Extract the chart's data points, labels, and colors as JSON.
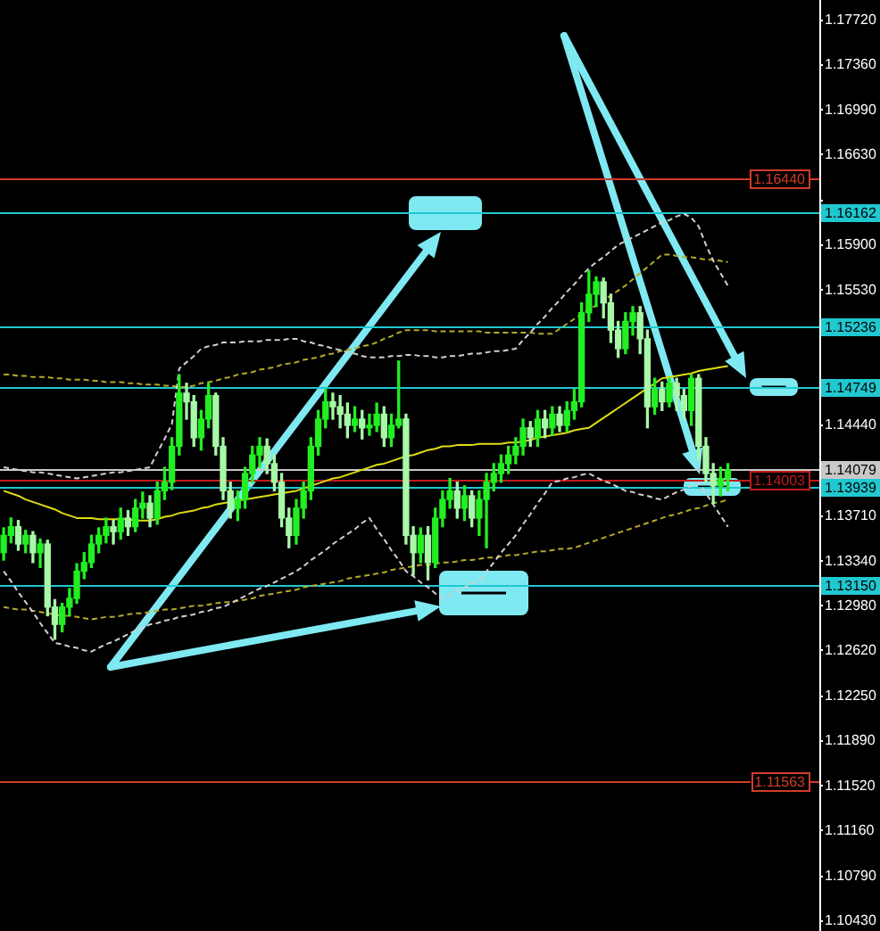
{
  "chart_data": {
    "type": "candlestick",
    "categories": [
      null,
      null,
      null,
      null,
      null,
      null,
      null,
      null,
      null,
      null,
      null,
      null,
      null,
      null,
      null,
      null,
      null,
      null,
      null,
      null,
      null,
      null,
      null,
      null,
      null,
      null,
      null,
      null,
      null,
      null,
      null,
      null,
      null,
      null,
      null,
      null,
      null,
      null,
      null,
      null,
      null,
      null,
      null,
      null,
      null,
      null,
      null,
      null,
      null,
      null,
      null,
      null,
      null,
      null,
      null,
      null,
      null,
      null,
      null,
      null,
      null,
      null,
      null,
      null,
      null,
      null,
      null,
      null,
      null,
      null,
      null,
      null,
      null,
      null,
      null,
      null,
      null,
      null,
      null,
      null,
      null,
      null,
      null,
      null,
      null,
      null,
      null,
      null,
      null,
      null,
      null,
      null,
      null,
      null,
      null,
      null,
      null,
      null,
      null,
      null,
      null,
      null,
      null,
      null,
      null,
      null,
      null,
      null,
      null,
      null,
      null,
      null
    ],
    "ohlc": [
      [
        1.1341,
        1.1361,
        1.1335,
        1.1355
      ],
      [
        1.1355,
        1.1369,
        1.1349,
        1.1362
      ],
      [
        1.1362,
        1.1367,
        1.1343,
        1.1348
      ],
      [
        1.1348,
        1.1359,
        1.1341,
        1.1355
      ],
      [
        1.1355,
        1.1358,
        1.1333,
        1.1341
      ],
      [
        1.1341,
        1.1352,
        1.1329,
        1.1348
      ],
      [
        1.1348,
        1.1351,
        1.129,
        1.1297
      ],
      [
        1.1297,
        1.1303,
        1.1271,
        1.1283
      ],
      [
        1.1283,
        1.13,
        1.1277,
        1.1297
      ],
      [
        1.1297,
        1.1312,
        1.129,
        1.1304
      ],
      [
        1.1304,
        1.1332,
        1.13,
        1.1326
      ],
      [
        1.1326,
        1.1341,
        1.132,
        1.1333
      ],
      [
        1.1333,
        1.1355,
        1.1329,
        1.1348
      ],
      [
        1.1348,
        1.1361,
        1.1341,
        1.1355
      ],
      [
        1.1355,
        1.1369,
        1.1349,
        1.1362
      ],
      [
        1.1362,
        1.1367,
        1.1348,
        1.1358
      ],
      [
        1.1358,
        1.1377,
        1.1352,
        1.1369
      ],
      [
        1.1369,
        1.1375,
        1.1355,
        1.1362
      ],
      [
        1.1362,
        1.1384,
        1.1358,
        1.1377
      ],
      [
        1.1377,
        1.139,
        1.1369,
        1.1381
      ],
      [
        1.1381,
        1.1387,
        1.1362,
        1.1369
      ],
      [
        1.1369,
        1.1398,
        1.1364,
        1.1391
      ],
      [
        1.1391,
        1.141,
        1.1384,
        1.1398
      ],
      [
        1.1398,
        1.1434,
        1.1392,
        1.1427
      ],
      [
        1.1427,
        1.1485,
        1.142,
        1.147
      ],
      [
        1.147,
        1.1478,
        1.1449,
        1.1463
      ],
      [
        1.1463,
        1.1468,
        1.1427,
        1.1434
      ],
      [
        1.1434,
        1.1456,
        1.1424,
        1.1449
      ],
      [
        1.1449,
        1.1478,
        1.1442,
        1.1468
      ],
      [
        1.1468,
        1.147,
        1.142,
        1.1427
      ],
      [
        1.1427,
        1.1434,
        1.1384,
        1.1391
      ],
      [
        1.1391,
        1.1398,
        1.1369,
        1.1377
      ],
      [
        1.1377,
        1.1391,
        1.1367,
        1.1384
      ],
      [
        1.1384,
        1.141,
        1.1377,
        1.1405
      ],
      [
        1.1405,
        1.1427,
        1.1398,
        1.142
      ],
      [
        1.142,
        1.1434,
        1.141,
        1.1427
      ],
      [
        1.1427,
        1.1433,
        1.1405,
        1.1413
      ],
      [
        1.1413,
        1.142,
        1.1391,
        1.1398
      ],
      [
        1.1398,
        1.1405,
        1.1362,
        1.1369
      ],
      [
        1.1369,
        1.1377,
        1.1345,
        1.1355
      ],
      [
        1.1355,
        1.1384,
        1.1348,
        1.1377
      ],
      [
        1.1377,
        1.1398,
        1.1369,
        1.1391
      ],
      [
        1.1391,
        1.1434,
        1.1384,
        1.1427
      ],
      [
        1.1427,
        1.1456,
        1.142,
        1.1449
      ],
      [
        1.1449,
        1.1473,
        1.1442,
        1.1463
      ],
      [
        1.1463,
        1.147,
        1.1449,
        1.1459
      ],
      [
        1.1459,
        1.1468,
        1.1442,
        1.1453
      ],
      [
        1.1453,
        1.1462,
        1.1434,
        1.1444
      ],
      [
        1.1444,
        1.1459,
        1.1439,
        1.1449
      ],
      [
        1.1449,
        1.1456,
        1.1433,
        1.1442
      ],
      [
        1.1442,
        1.1453,
        1.1436,
        1.1444
      ],
      [
        1.1444,
        1.1462,
        1.1439,
        1.1453
      ],
      [
        1.1453,
        1.1459,
        1.1427,
        1.1434
      ],
      [
        1.1434,
        1.1453,
        1.1427,
        1.1444
      ],
      [
        1.1444,
        1.1496,
        1.1442,
        1.1449
      ],
      [
        1.1449,
        1.1453,
        1.1348,
        1.1355
      ],
      [
        1.1355,
        1.1362,
        1.1323,
        1.1341
      ],
      [
        1.1341,
        1.1361,
        1.1333,
        1.1355
      ],
      [
        1.1355,
        1.1362,
        1.1319,
        1.1333
      ],
      [
        1.1333,
        1.1377,
        1.1329,
        1.1369
      ],
      [
        1.1369,
        1.1391,
        1.1362,
        1.1384
      ],
      [
        1.1384,
        1.1401,
        1.1377,
        1.1391
      ],
      [
        1.1391,
        1.1398,
        1.1369,
        1.1377
      ],
      [
        1.1377,
        1.1395,
        1.1367,
        1.1387
      ],
      [
        1.1387,
        1.1391,
        1.1362,
        1.1369
      ],
      [
        1.1369,
        1.1391,
        1.1355,
        1.1384
      ],
      [
        1.1384,
        1.1405,
        1.1345,
        1.1398
      ],
      [
        1.1398,
        1.1413,
        1.1391,
        1.1405
      ],
      [
        1.1405,
        1.142,
        1.1398,
        1.1413
      ],
      [
        1.1413,
        1.1427,
        1.1405,
        1.142
      ],
      [
        1.142,
        1.1434,
        1.1413,
        1.1427
      ],
      [
        1.1427,
        1.1449,
        1.142,
        1.1442
      ],
      [
        1.1442,
        1.1447,
        1.1427,
        1.1434
      ],
      [
        1.1434,
        1.1456,
        1.1427,
        1.1449
      ],
      [
        1.1449,
        1.1456,
        1.1434,
        1.1442
      ],
      [
        1.1442,
        1.1459,
        1.1436,
        1.1453
      ],
      [
        1.1453,
        1.1459,
        1.1439,
        1.1444
      ],
      [
        1.1444,
        1.1463,
        1.1439,
        1.1456
      ],
      [
        1.1456,
        1.1473,
        1.1449,
        1.1463
      ],
      [
        1.1463,
        1.1543,
        1.1459,
        1.1535
      ],
      [
        1.1535,
        1.1569,
        1.1528,
        1.155
      ],
      [
        1.155,
        1.1564,
        1.154,
        1.156
      ],
      [
        1.156,
        1.1563,
        1.1531,
        1.1543
      ],
      [
        1.1543,
        1.155,
        1.1511,
        1.1521
      ],
      [
        1.1521,
        1.1528,
        1.1499,
        1.1506
      ],
      [
        1.1506,
        1.1535,
        1.1502,
        1.1528
      ],
      [
        1.1528,
        1.154,
        1.1517,
        1.1535
      ],
      [
        1.1535,
        1.154,
        1.1502,
        1.1514
      ],
      [
        1.1514,
        1.1521,
        1.1442,
        1.1459
      ],
      [
        1.1459,
        1.1482,
        1.1453,
        1.1473
      ],
      [
        1.1473,
        1.1479,
        1.1456,
        1.1463
      ],
      [
        1.1463,
        1.1482,
        1.1459,
        1.1478
      ],
      [
        1.1478,
        1.1482,
        1.1456,
        1.1468
      ],
      [
        1.1468,
        1.1473,
        1.1449,
        1.1456
      ],
      [
        1.1456,
        1.1485,
        1.1444,
        1.1482
      ],
      [
        1.1482,
        1.1485,
        1.1416,
        1.1427
      ],
      [
        1.1427,
        1.1434,
        1.1398,
        1.1405
      ],
      [
        1.1405,
        1.1413,
        1.1381,
        1.1395
      ],
      [
        1.1395,
        1.141,
        1.1387,
        1.1401
      ],
      [
        1.1401,
        1.1413,
        1.1391,
        1.1408
      ],
      null,
      null,
      null,
      null,
      null,
      null,
      null,
      null,
      null,
      null,
      null,
      null
    ],
    "colors": [
      "#22ee22",
      "#22ee22",
      "#a7f8a7",
      "#22ee22",
      "#a7f8a7",
      "#22ee22",
      "#a7f8a7",
      "#a7f8a7",
      "#22ee22",
      "#22ee22",
      "#22ee22",
      "#22ee22",
      "#22ee22",
      "#22ee22",
      "#22ee22",
      "#a7f8a7",
      "#22ee22",
      "#a7f8a7",
      "#22ee22",
      "#22ee22",
      "#a7f8a7",
      "#22ee22",
      "#22ee22",
      "#22ee22",
      "#22ee22",
      "#a7f8a7",
      "#a7f8a7",
      "#22ee22",
      "#22ee22",
      "#a7f8a7",
      "#a7f8a7",
      "#a7f8a7",
      "#22ee22",
      "#22ee22",
      "#22ee22",
      "#22ee22",
      "#a7f8a7",
      "#a7f8a7",
      "#a7f8a7",
      "#a7f8a7",
      "#22ee22",
      "#22ee22",
      "#22ee22",
      "#22ee22",
      "#22ee22",
      "#a7f8a7",
      "#a7f8a7",
      "#a7f8a7",
      "#22ee22",
      "#a7f8a7",
      "#22ee22",
      "#22ee22",
      "#a7f8a7",
      "#22ee22",
      "#22ee22",
      "#a7f8a7",
      "#a7f8a7",
      "#22ee22",
      "#a7f8a7",
      "#22ee22",
      "#22ee22",
      "#22ee22",
      "#a7f8a7",
      "#22ee22",
      "#a7f8a7",
      "#22ee22",
      "#22ee22",
      "#22ee22",
      "#22ee22",
      "#22ee22",
      "#22ee22",
      "#22ee22",
      "#a7f8a7",
      "#22ee22",
      "#a7f8a7",
      "#22ee22",
      "#a7f8a7",
      "#22ee22",
      "#22ee22",
      "#22ee22",
      "#22ee22",
      "#22ee22",
      "#a7f8a7",
      "#a7f8a7",
      "#a7f8a7",
      "#22ee22",
      "#22ee22",
      "#a7f8a7",
      "#a7f8a7",
      "#22ee22",
      "#a7f8a7",
      "#22ee22",
      "#a7f8a7",
      "#a7f8a7",
      "#22ee22",
      "#a7f8a7",
      "#a7f8a7",
      "#a7f8a7",
      "#22ee22",
      "#22ee22",
      null,
      null,
      null,
      null,
      null,
      null,
      null,
      null,
      null,
      null,
      null,
      null
    ],
    "series": [
      {
        "type": "line",
        "color": "#dede10",
        "line_style": "solid",
        "values": [
          1.1391,
          1.1389,
          1.1387,
          1.1384,
          1.1382,
          1.138,
          1.1378,
          1.1376,
          1.1373,
          1.1371,
          1.1369,
          1.1369,
          1.1369,
          1.1368,
          1.1368,
          1.1368,
          1.1368,
          1.1368,
          1.1367,
          1.1367,
          1.1367,
          1.1368,
          1.137,
          1.1371,
          1.1373,
          1.1374,
          1.1375,
          1.1377,
          1.1378,
          1.138,
          1.1381,
          1.1382,
          1.1383,
          1.1384,
          1.1385,
          1.1386,
          1.1387,
          1.1388,
          1.1389,
          1.139,
          1.1391,
          1.1393,
          1.1395,
          1.1397,
          1.1399,
          1.1401,
          1.1402,
          1.1404,
          1.1406,
          1.1408,
          1.141,
          1.1412,
          1.1413,
          1.1415,
          1.1417,
          1.1419,
          1.142,
          1.1422,
          1.1424,
          1.1425,
          1.1427,
          1.1427,
          1.1428,
          1.1428,
          1.1428,
          1.1429,
          1.1429,
          1.1429,
          1.1429,
          1.143,
          1.143,
          1.1431,
          1.1432,
          1.1434,
          1.1435,
          1.1436,
          1.1437,
          1.1438,
          1.144,
          1.1441,
          1.1442,
          1.1446,
          1.145,
          1.1454,
          1.1458,
          1.1462,
          1.1466,
          1.147,
          1.1474,
          1.1478,
          1.1482,
          1.1483,
          1.1484,
          1.1485,
          1.1486,
          1.1488,
          1.1489,
          1.149,
          1.1491,
          1.1492,
          null,
          null,
          null,
          null,
          null,
          null,
          null,
          null,
          null,
          null,
          null,
          null
        ]
      },
      {
        "type": "line",
        "color": "#d0d0d0",
        "line_style": "dashed",
        "values": [
          1.141,
          1.1409,
          1.1408,
          1.1407,
          1.1406,
          1.1406,
          1.1405,
          1.1404,
          1.1403,
          1.1402,
          1.1401,
          1.1402,
          1.1403,
          1.1404,
          1.1405,
          1.1406,
          1.1406,
          1.1407,
          1.1408,
          1.1409,
          1.141,
          1.1422,
          1.1433,
          1.1445,
          1.149,
          1.1495,
          1.15,
          1.1506,
          1.1508,
          1.1509,
          1.1511,
          1.1511,
          1.1511,
          1.1512,
          1.1512,
          1.1512,
          1.1513,
          1.1513,
          1.1513,
          1.1514,
          1.1514,
          1.1512,
          1.1511,
          1.1509,
          1.1508,
          1.1506,
          1.1505,
          1.1503,
          1.1502,
          1.15,
          1.1499,
          1.1499,
          1.1499,
          1.15,
          1.15,
          1.1501,
          1.1501,
          1.15,
          1.15,
          1.1499,
          1.1499,
          1.15,
          1.15,
          1.1501,
          1.1502,
          1.1502,
          1.1503,
          1.1504,
          1.1504,
          1.1505,
          1.1506,
          1.1513,
          1.1519,
          1.1526,
          1.1532,
          1.1539,
          1.1545,
          1.1552,
          1.1558,
          1.1565,
          1.1571,
          1.1576,
          1.158,
          1.1585,
          1.159,
          1.1593,
          1.1596,
          1.1599,
          1.1602,
          1.1605,
          1.1608,
          1.161,
          1.1613,
          1.1615,
          1.1612,
          1.1605,
          1.159,
          1.1577,
          1.1567,
          1.1557,
          null,
          null,
          null,
          null,
          null,
          null,
          null,
          null,
          null,
          null,
          null,
          null
        ]
      },
      {
        "type": "line",
        "color": "#d0d0d0",
        "line_style": "dashed",
        "values": [
          1.1326,
          1.1318,
          1.1309,
          1.1301,
          1.1293,
          1.1284,
          1.1276,
          1.1268,
          1.1267,
          1.1265,
          1.1264,
          1.1262,
          1.1261,
          1.1264,
          1.1267,
          1.1269,
          1.1272,
          1.1275,
          1.1278,
          1.128,
          1.1283,
          1.1284,
          1.1286,
          1.1287,
          1.1289,
          1.129,
          1.1291,
          1.1293,
          1.1294,
          1.1296,
          1.1297,
          1.13,
          1.1303,
          1.1306,
          1.1309,
          1.1312,
          1.1314,
          1.1317,
          1.132,
          1.1323,
          1.1326,
          1.133,
          1.1335,
          1.1339,
          1.1343,
          1.1348,
          1.1352,
          1.1356,
          1.136,
          1.1365,
          1.1369,
          1.136,
          1.1352,
          1.1343,
          1.1335,
          1.1326,
          1.1322,
          1.1317,
          1.1313,
          1.1308,
          1.1304,
          1.1307,
          1.131,
          1.1313,
          1.1316,
          1.1319,
          1.1326,
          1.1333,
          1.1341,
          1.1348,
          1.1355,
          1.1364,
          1.1372,
          1.1381,
          1.1389,
          1.1398,
          1.1399,
          1.1401,
          1.1402,
          1.1404,
          1.1405,
          1.1402,
          1.1399,
          1.1397,
          1.1394,
          1.1391,
          1.139,
          1.1388,
          1.1387,
          1.1385,
          1.1384,
          1.1387,
          1.139,
          1.1392,
          1.1395,
          1.1398,
          1.1389,
          1.138,
          1.1371,
          1.1362,
          null,
          null,
          null,
          null,
          null,
          null,
          null,
          null,
          null,
          null,
          null,
          null
        ]
      },
      {
        "type": "line",
        "color": "#b4aa28",
        "line_style": "dashed",
        "values": [
          1.1485,
          1.1485,
          1.1484,
          1.1484,
          1.1483,
          1.1483,
          1.1483,
          1.1482,
          1.1482,
          1.1481,
          1.1481,
          1.1481,
          1.148,
          1.148,
          1.1479,
          1.1479,
          1.1479,
          1.1478,
          1.1478,
          1.1477,
          1.1477,
          1.1477,
          1.1476,
          1.1476,
          1.1475,
          1.1475,
          1.1476,
          1.1478,
          1.1479,
          1.148,
          1.1482,
          1.1483,
          1.1485,
          1.1486,
          1.1487,
          1.1489,
          1.149,
          1.1491,
          1.1493,
          1.1494,
          1.1495,
          1.1497,
          1.1498,
          1.1499,
          1.1501,
          1.1502,
          1.1504,
          1.1505,
          1.1506,
          1.1508,
          1.1509,
          1.1511,
          1.1514,
          1.1516,
          1.1519,
          1.1521,
          1.1521,
          1.1521,
          1.1521,
          1.152,
          1.152,
          1.152,
          1.152,
          1.152,
          1.152,
          1.152,
          1.1519,
          1.1519,
          1.1519,
          1.1519,
          1.1519,
          1.1519,
          1.1519,
          1.1518,
          1.1518,
          1.1518,
          1.1522,
          1.1526,
          1.153,
          1.1534,
          1.1538,
          1.1541,
          1.1545,
          1.1549,
          1.1553,
          1.1557,
          1.1562,
          1.1567,
          1.1572,
          1.1577,
          1.1582,
          1.1582,
          1.1581,
          1.158,
          1.158,
          1.1579,
          1.1578,
          1.1578,
          1.1577,
          1.1576,
          null,
          null,
          null,
          null,
          null,
          null,
          null,
          null,
          null,
          null,
          null,
          null
        ]
      },
      {
        "type": "line",
        "color": "#b4aa28",
        "line_style": "dashed",
        "values": [
          1.1297,
          1.1296,
          1.1295,
          1.1295,
          1.1294,
          1.1293,
          1.1292,
          1.1291,
          1.129,
          1.129,
          1.1289,
          1.1288,
          1.1287,
          1.1288,
          1.1289,
          1.1289,
          1.129,
          1.1291,
          1.1292,
          1.1292,
          1.1293,
          1.1294,
          1.1295,
          1.1295,
          1.1296,
          1.1297,
          1.1298,
          1.1298,
          1.1299,
          1.13,
          1.1301,
          1.1301,
          1.1302,
          1.1303,
          1.1304,
          1.1306,
          1.1307,
          1.1308,
          1.1309,
          1.131,
          1.1311,
          1.1313,
          1.1314,
          1.1315,
          1.1316,
          1.1317,
          1.1318,
          1.132,
          1.1321,
          1.1322,
          1.1323,
          1.1324,
          1.1325,
          1.1327,
          1.1328,
          1.1329,
          1.133,
          1.1331,
          1.1331,
          1.1332,
          1.1333,
          1.1333,
          1.1334,
          1.1335,
          1.1335,
          1.1336,
          1.1337,
          1.1337,
          1.1338,
          1.1339,
          1.1339,
          1.134,
          1.1341,
          1.1342,
          1.1342,
          1.1343,
          1.1344,
          1.1344,
          1.1345,
          1.1347,
          1.1349,
          1.1351,
          1.1353,
          1.1355,
          1.1357,
          1.1359,
          1.1361,
          1.1363,
          1.1365,
          1.1367,
          1.1369,
          1.1371,
          1.1372,
          1.1374,
          1.1376,
          1.1377,
          1.1379,
          1.1381,
          1.1382,
          1.1384,
          null,
          null,
          null,
          null,
          null,
          null,
          null,
          null,
          null,
          null,
          null,
          null
        ]
      }
    ],
    "ylim": [
      1.1035,
      1.1788
    ],
    "yticks": [
      {
        "value": 1.1043,
        "label": "1.10430"
      },
      {
        "value": 1.1079,
        "label": "1.10790"
      },
      {
        "value": 1.1116,
        "label": "1.11160"
      },
      {
        "value": 1.1152,
        "label": "1.11520"
      },
      {
        "value": 1.1189,
        "label": "1.11890"
      },
      {
        "value": 1.1225,
        "label": "1.12250"
      },
      {
        "value": 1.1262,
        "label": "1.12620"
      },
      {
        "value": 1.1298,
        "label": "1.12980"
      },
      {
        "value": 1.1334,
        "label": "1.13340"
      },
      {
        "value": 1.1371,
        "label": "1.13710"
      },
      {
        "value": 1.1444,
        "label": "1.14440"
      },
      {
        "value": 1.1517,
        "label": null
      },
      {
        "value": 1.1553,
        "label": "1.15530"
      },
      {
        "value": 1.159,
        "label": "1.15900"
      },
      {
        "value": 1.1626,
        "label": null
      },
      {
        "value": 1.1663,
        "label": "1.16630"
      },
      {
        "value": 1.1699,
        "label": "1.16990"
      },
      {
        "value": 1.1736,
        "label": "1.17360"
      },
      {
        "value": 1.1772,
        "label": "1.17720"
      }
    ],
    "ref_lines": [
      {
        "axis": "y",
        "value": 1.1644,
        "label": "1.16440",
        "color": "#d23c28"
      },
      {
        "axis": "y",
        "value": 1.16162,
        "label": "1.16162",
        "color": "#20c8d0"
      },
      {
        "axis": "y",
        "value": 1.15236,
        "label": "1.15236",
        "color": "#20c8d0"
      },
      {
        "axis": "y",
        "value": 1.14749,
        "label": "1.14749",
        "color": "#20c8d0"
      },
      {
        "axis": "y",
        "value": 1.14079,
        "label": "1.14079",
        "color": "#c8c8c8"
      },
      {
        "axis": "y",
        "value": 1.14003,
        "label": "1.14003",
        "color": "#c01c1c"
      },
      {
        "axis": "y",
        "value": 1.13939,
        "label": "1.13939",
        "color": "#20c8d0"
      },
      {
        "axis": "y",
        "value": 1.1315,
        "label": "1.13150",
        "color": "#20c8d0"
      },
      {
        "axis": "y",
        "value": 1.11563,
        "label": "1.11563",
        "color": "#d23c28"
      }
    ],
    "tick_labels": "y"
  }
}
